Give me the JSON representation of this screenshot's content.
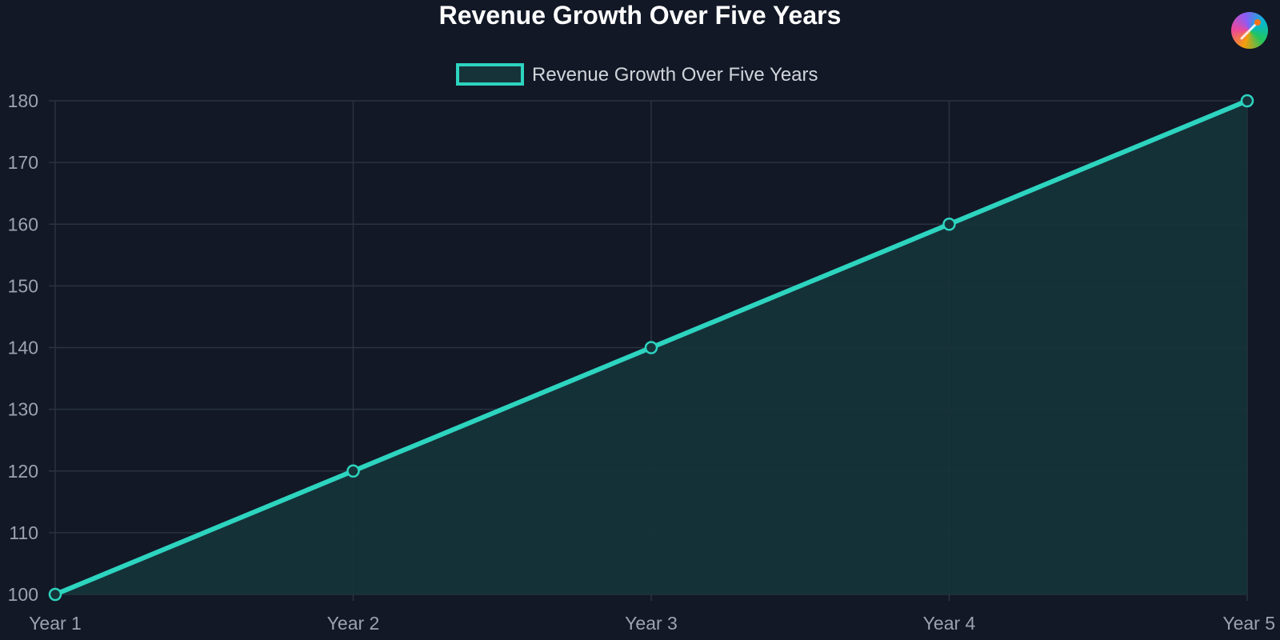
{
  "chart_data": {
    "type": "area",
    "title": "Revenue Growth Over Five Years",
    "categories": [
      "Year 1",
      "Year 2",
      "Year 3",
      "Year 4",
      "Year 5"
    ],
    "series": [
      {
        "name": "Revenue Growth Over Five Years",
        "values": [
          100,
          120,
          140,
          160,
          180
        ]
      }
    ],
    "xlabel": "",
    "ylabel": "",
    "ylim": [
      100,
      180
    ],
    "yticks": [
      "100",
      "110",
      "120",
      "130",
      "140",
      "150",
      "160",
      "170",
      "180"
    ],
    "grid": true,
    "legend_position": "top-center",
    "colors": {
      "background": "#121826",
      "line": "#2dd4bf",
      "fill": "#163339",
      "grid": "#2a3241",
      "tick_text": "#9ca3af",
      "title_text": "#ffffff",
      "legend_text": "#d1d5db"
    }
  },
  "logo_icon": "color-palette-icon"
}
